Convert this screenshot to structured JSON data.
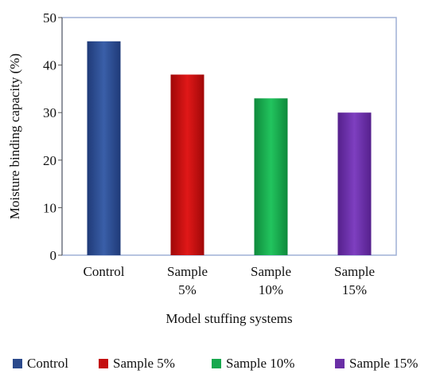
{
  "chart_data": {
    "type": "bar",
    "categories": [
      [
        "Control"
      ],
      [
        "Sample",
        "5%"
      ],
      [
        "Sample",
        "10%"
      ],
      [
        "Sample",
        "15%"
      ]
    ],
    "values": [
      45,
      38,
      33,
      30
    ],
    "colors": [
      "#2b4a8c",
      "#c40f10",
      "#17a84e",
      "#6a2fa6"
    ],
    "xlabel": "Model stuffing systems",
    "ylabel": "Moisture binding capacity (%)",
    "ylim": [
      0,
      50
    ],
    "yticks": [
      0,
      10,
      20,
      30,
      40,
      50
    ],
    "grid": false,
    "legend_position": "bottom",
    "legend": [
      "Control",
      "Sample 5%",
      "Sample 10%",
      "Sample 15%"
    ]
  }
}
